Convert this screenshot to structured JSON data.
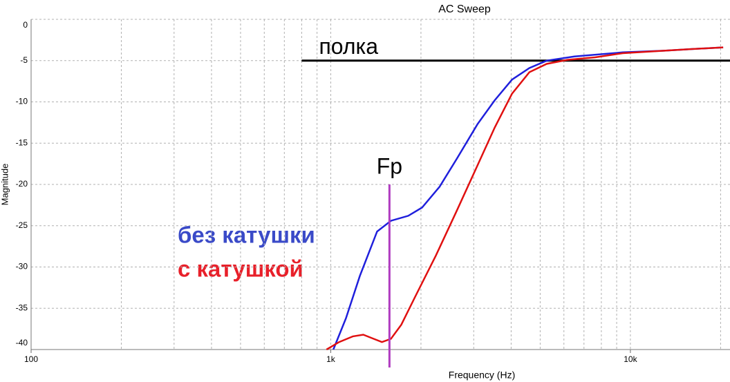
{
  "chart_data": {
    "type": "line",
    "title": "AC Sweep",
    "x_label": "Frequency (Hz)",
    "y_label": "Magnitude",
    "log_x": true,
    "grid": true,
    "xlim": [
      100,
      21500
    ],
    "xticks": [
      100,
      {
        "value": 1000,
        "label": "1k"
      },
      {
        "value": 10000,
        "label": "10k"
      }
    ],
    "ylim": [
      -40,
      0
    ],
    "yticks": [
      0,
      -5,
      -10,
      -15,
      -20,
      -25,
      -30,
      -35,
      -40
    ],
    "series": [
      {
        "name": "без катушки",
        "color": "#1f1fdc",
        "x": [
          1020,
          1124,
          1250,
          1428,
          1588,
          1814,
          2017,
          2305,
          2633,
          3088,
          3527,
          4027,
          4601,
          5255,
          6502,
          9433,
          12980,
          16050,
          20400
        ],
        "values": [
          -40,
          -36.2,
          -31.1,
          -25.7,
          -24.4,
          -23.8,
          -22.8,
          -20.3,
          -16.9,
          -12.7,
          -9.8,
          -7.3,
          -5.9,
          -5.0,
          -4.5,
          -4.0,
          -3.8,
          -3.6,
          -3.4
        ]
      },
      {
        "name": "с катушкой",
        "color": "#e01010",
        "x": [
          968,
          1066,
          1186,
          1284,
          1391,
          1482,
          1588,
          1720,
          1913,
          2244,
          2633,
          3088,
          3527,
          4027,
          4601,
          5255,
          6165,
          7625,
          9433,
          12980,
          16050,
          20400
        ],
        "values": [
          -40,
          -39.1,
          -38.4,
          -38.2,
          -38.7,
          -39.1,
          -38.7,
          -37.0,
          -33.6,
          -28.6,
          -23.2,
          -17.7,
          -13.1,
          -9.0,
          -6.4,
          -5.4,
          -4.9,
          -4.6,
          -4.1,
          -3.8,
          -3.6,
          -3.4
        ]
      }
    ],
    "shelf": {
      "text": "полка",
      "y": -5,
      "x": [
        800,
        21500
      ]
    },
    "marker": {
      "text": "Fp",
      "x": 1570,
      "y": -20
    }
  }
}
